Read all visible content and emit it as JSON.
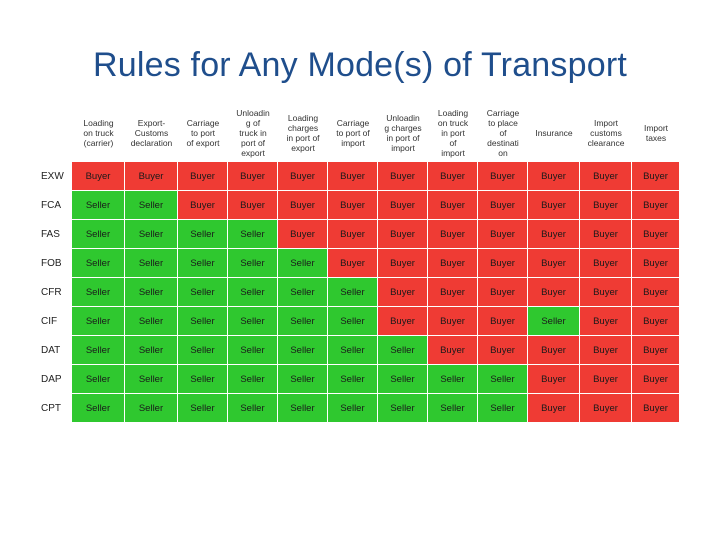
{
  "title": "Rules for Any Mode(s) of Transport",
  "columns": [
    "Loading\non truck\n(carrier)",
    "Export-\nCustoms\ndeclaration",
    "Carriage\nto port\nof export",
    "Unloadin\ng of\ntruck in\nport of\nexport",
    "Loading\ncharges\nin port of\nexport",
    "Carriage\nto port of\nimport",
    "Unloadin\ng charges\nin port of\nimport",
    "Loading\non truck\nin port\nof\nimport",
    "Carriage\nto place\nof\ndestinati\non",
    "Insurance",
    "Import\ncustoms\nclearance",
    "Import\ntaxes"
  ],
  "rows": [
    {
      "term": "EXW",
      "cells": [
        "Buyer",
        "Buyer",
        "Buyer",
        "Buyer",
        "Buyer",
        "Buyer",
        "Buyer",
        "Buyer",
        "Buyer",
        "Buyer",
        "Buyer",
        "Buyer"
      ]
    },
    {
      "term": "FCA",
      "cells": [
        "Seller",
        "Seller",
        "Buyer",
        "Buyer",
        "Buyer",
        "Buyer",
        "Buyer",
        "Buyer",
        "Buyer",
        "Buyer",
        "Buyer",
        "Buyer"
      ]
    },
    {
      "term": "FAS",
      "cells": [
        "Seller",
        "Seller",
        "Seller",
        "Seller",
        "Buyer",
        "Buyer",
        "Buyer",
        "Buyer",
        "Buyer",
        "Buyer",
        "Buyer",
        "Buyer"
      ]
    },
    {
      "term": "FOB",
      "cells": [
        "Seller",
        "Seller",
        "Seller",
        "Seller",
        "Seller",
        "Buyer",
        "Buyer",
        "Buyer",
        "Buyer",
        "Buyer",
        "Buyer",
        "Buyer"
      ]
    },
    {
      "term": "CFR",
      "cells": [
        "Seller",
        "Seller",
        "Seller",
        "Seller",
        "Seller",
        "Seller",
        "Buyer",
        "Buyer",
        "Buyer",
        "Buyer",
        "Buyer",
        "Buyer"
      ]
    },
    {
      "term": "CIF",
      "cells": [
        "Seller",
        "Seller",
        "Seller",
        "Seller",
        "Seller",
        "Seller",
        "Buyer",
        "Buyer",
        "Buyer",
        "Seller",
        "Buyer",
        "Buyer"
      ]
    },
    {
      "term": "DAT",
      "cells": [
        "Seller",
        "Seller",
        "Seller",
        "Seller",
        "Seller",
        "Seller",
        "Seller",
        "Buyer",
        "Buyer",
        "Buyer",
        "Buyer",
        "Buyer"
      ]
    },
    {
      "term": "DAP",
      "cells": [
        "Seller",
        "Seller",
        "Seller",
        "Seller",
        "Seller",
        "Seller",
        "Seller",
        "Seller",
        "Seller",
        "Buyer",
        "Buyer",
        "Buyer"
      ]
    },
    {
      "term": "CPT",
      "cells": [
        "Seller",
        "Seller",
        "Seller",
        "Seller",
        "Seller",
        "Seller",
        "Seller",
        "Seller",
        "Seller",
        "Buyer",
        "Buyer",
        "Buyer"
      ]
    }
  ],
  "colors": {
    "buyer": "#ef3b34",
    "seller": "#2fc82f"
  }
}
